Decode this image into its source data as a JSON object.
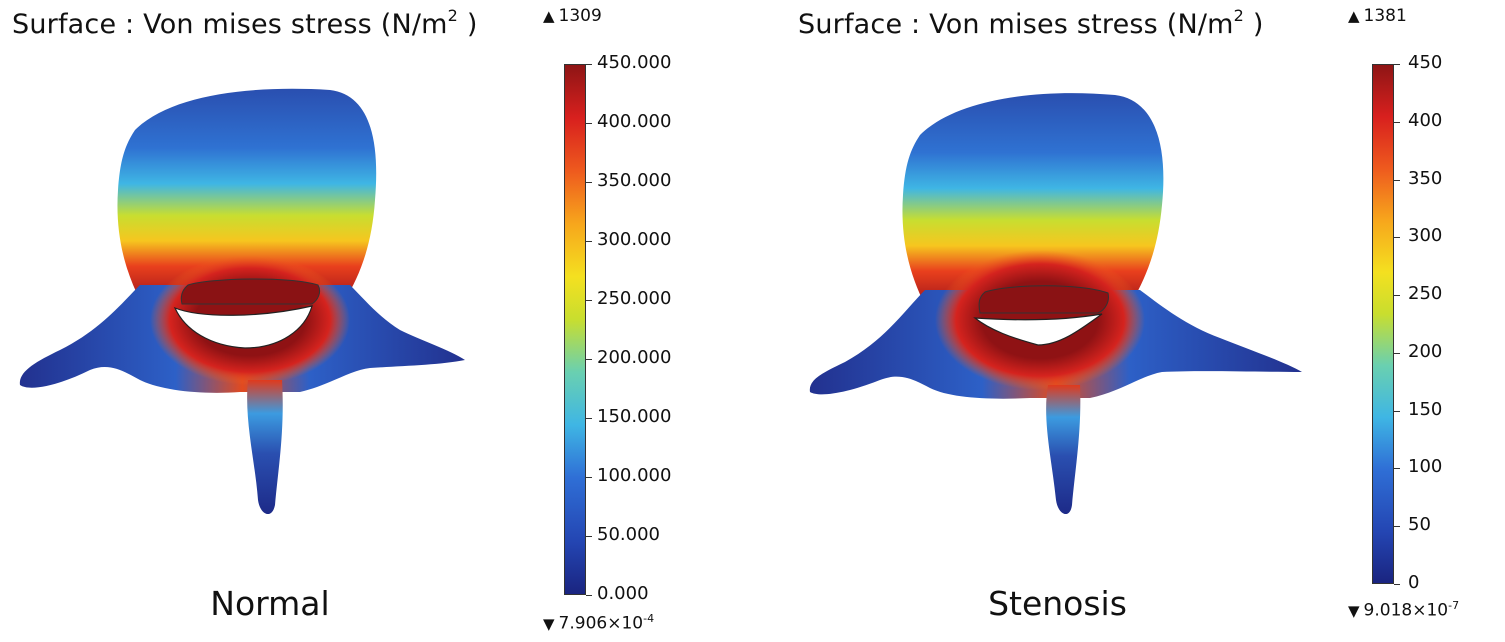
{
  "panels": [
    {
      "title_main": "Surface : Von mises stress (N/m",
      "title_sup": "2",
      "title_end": " )",
      "max_label": "1309",
      "min_base": "7.906×10",
      "min_exp": "-4",
      "caption": "Normal",
      "colorbar_ticks": [
        "450.000",
        "400.000",
        "350.000",
        "300.000",
        "250.000",
        "200.000",
        "150.000",
        "100.000",
        "50.000",
        "0.000"
      ]
    },
    {
      "title_main": "Surface : Von mises stress (N/m",
      "title_sup": "2",
      "title_end": " )",
      "max_label": "1381",
      "min_base": "9.018×10",
      "min_exp": "-7",
      "caption": "Stenosis",
      "colorbar_ticks": [
        "450",
        "400",
        "350",
        "300",
        "250",
        "200",
        "150",
        "100",
        "50",
        "0"
      ]
    }
  ],
  "colors": {
    "low": "#1a2480",
    "mid": "#f4e020",
    "high": "#8e1515"
  }
}
